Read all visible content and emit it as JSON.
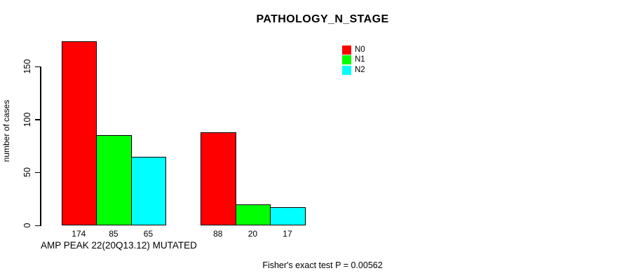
{
  "title": "PATHOLOGY_N_STAGE",
  "chart_data": {
    "type": "bar",
    "title": "PATHOLOGY_N_STAGE",
    "ylabel": "number of cases",
    "xlabel": "AMP PEAK 22(20Q13.12) MUTATED",
    "grid": false,
    "legend_position": "top-right-inside",
    "yticks": [
      0,
      50,
      100,
      150
    ],
    "groups": 2,
    "series": [
      {
        "name": "N0",
        "color": "#FF0000",
        "values": [
          174,
          88
        ]
      },
      {
        "name": "N1",
        "color": "#00FF00",
        "values": [
          85,
          20
        ]
      },
      {
        "name": "N2",
        "color": "#00FFFF",
        "values": [
          65,
          17
        ]
      }
    ],
    "bar_value_labels": [
      [
        174,
        85,
        65
      ],
      [
        88,
        20,
        17
      ]
    ]
  },
  "annotations": {
    "footer": "Fisher's exact test P = 0.00562"
  },
  "colors": {
    "background": "#FFFFFF",
    "axis": "#000000",
    "bar_border": "#000000",
    "n0": "#FF0000",
    "n1": "#00FF00",
    "n2": "#00FFFF"
  }
}
